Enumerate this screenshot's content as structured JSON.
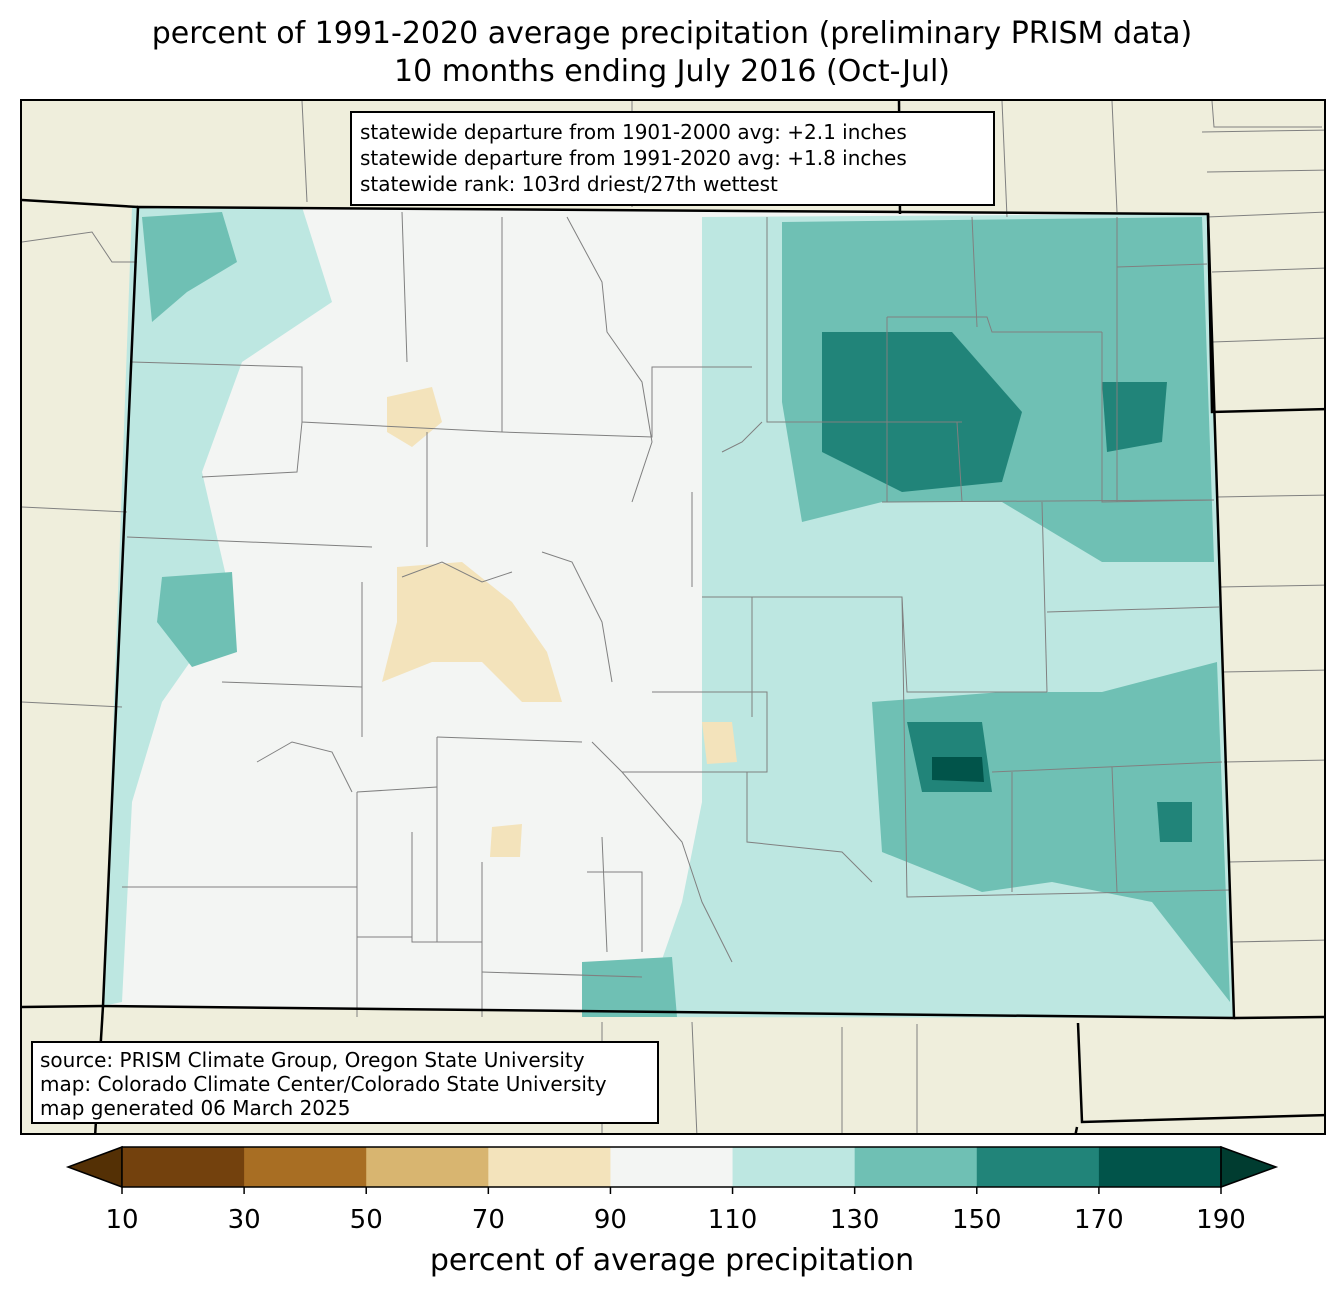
{
  "title": {
    "line1": "percent of 1991-2020 average precipitation (preliminary PRISM data)",
    "line2": "10 months ending July 2016 (Oct-Jul)"
  },
  "stats": {
    "line1": "statewide departure from 1901-2000 avg: +2.1 inches",
    "line2": "statewide departure from 1991-2020 avg: +1.8 inches",
    "line3": "statewide rank: 103rd driest/27th wettest"
  },
  "source": {
    "line1": "source: PRISM Climate Group, Oregon State University",
    "line2": "map: Colorado Climate Center/Colorado State University",
    "line3": "map generated 06 March 2025"
  },
  "colorbar": {
    "label": "percent of average precipitation",
    "ticks": [
      "10",
      "30",
      "50",
      "70",
      "90",
      "110",
      "130",
      "150",
      "170",
      "190"
    ],
    "colors": [
      "#73410d",
      "#a86e23",
      "#d8b570",
      "#f3e3bb",
      "#f3f5f3",
      "#bde7e1",
      "#6fc0b4",
      "#218479",
      "#01544a"
    ],
    "under_color": "#543005",
    "over_color": "#003c30"
  },
  "colors": {
    "land": "#efeedc",
    "county_lines": "#808080",
    "state_lines": "#000000"
  }
}
